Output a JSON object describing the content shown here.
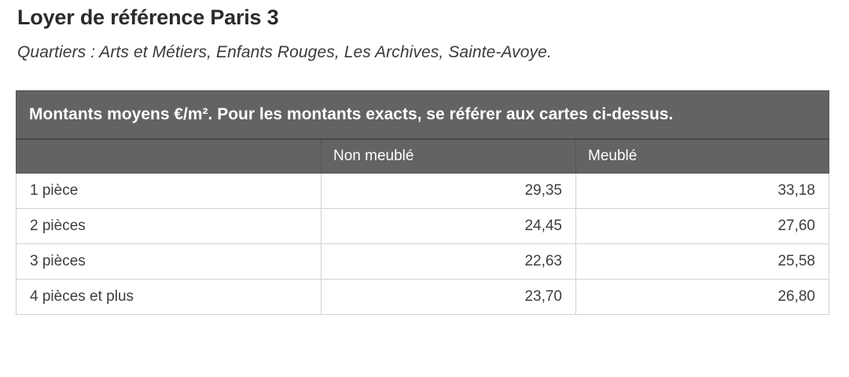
{
  "page": {
    "title": "Loyer de référence Paris 3",
    "subtitle": "Quartiers : Arts et Métiers, Enfants Rouges, Les Archives, Sainte-Avoye."
  },
  "table": {
    "caption": "Montants moyens €/m². Pour les montants exacts, se référer aux cartes ci-dessus.",
    "columns": {
      "rooms": "",
      "non_meuble": "Non meublé",
      "meuble": "Meublé"
    },
    "rows": [
      {
        "label": "1 pièce",
        "non_meuble": "29,35",
        "meuble": "33,18"
      },
      {
        "label": "2 pièces",
        "non_meuble": "24,45",
        "meuble": "27,60"
      },
      {
        "label": "3 pièces",
        "non_meuble": "22,63",
        "meuble": "25,58"
      },
      {
        "label": "4 pièces et plus",
        "non_meuble": "23,70",
        "meuble": "26,80"
      }
    ]
  },
  "colors": {
    "header_background": "#636363",
    "header_divider": "#474747",
    "cell_border": "#d2d2d2",
    "title_text": "#2b2b2b",
    "body_text": "#3d3d3d",
    "header_text": "#ffffff"
  },
  "chart_data": {
    "type": "table",
    "title": "Loyer de référence Paris 3",
    "caption": "Montants moyens €/m². Pour les montants exacts, se référer aux cartes ci-dessus.",
    "unit": "€/m²",
    "categories": [
      "1 pièce",
      "2 pièces",
      "3 pièces",
      "4 pièces et plus"
    ],
    "series": [
      {
        "name": "Non meublé",
        "values": [
          29.35,
          24.45,
          22.63,
          23.7
        ]
      },
      {
        "name": "Meublé",
        "values": [
          33.18,
          27.6,
          25.58,
          26.8
        ]
      }
    ]
  }
}
